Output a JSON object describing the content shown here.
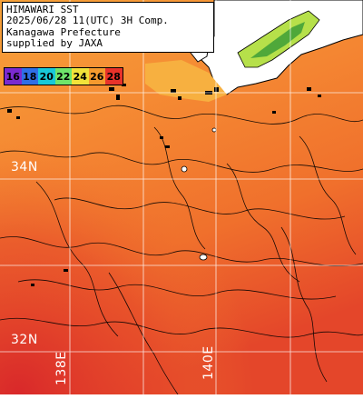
{
  "header": {
    "lines": [
      "HIMAWARI SST",
      "2025/06/28 11(UTC) 3H Comp.",
      "Kanagawa Prefecture",
      "supplied by JAXA"
    ]
  },
  "legend": {
    "labels": [
      "16",
      "18",
      "20",
      "22",
      "24",
      "26",
      "28"
    ],
    "colors": [
      "#7a2ad0",
      "#2f6fe6",
      "#18c9d8",
      "#6fe46a",
      "#f2e33a",
      "#f59a2e",
      "#e8322a"
    ]
  },
  "grid": {
    "lat_labels": [
      "34N",
      "32N"
    ],
    "lon_labels": [
      "138E",
      "140E"
    ]
  },
  "colors": {
    "sea_warm": "#f2782e",
    "sea_hot": "#e03a28",
    "sea_cool": "#f6a23a",
    "land": "#ffffff",
    "coast": "#000000",
    "grid": "#ffffff"
  }
}
